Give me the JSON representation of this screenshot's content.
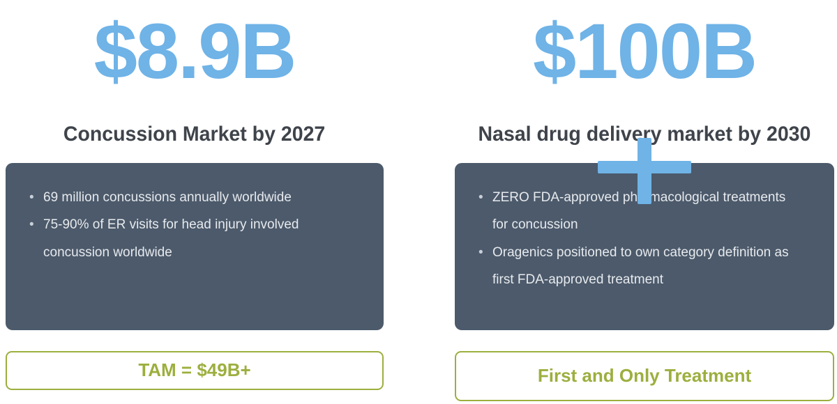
{
  "colors": {
    "accent_blue": "#6FB3E7",
    "panel_dark": "#4C5A6B",
    "heading_gray": "#3F444B",
    "accent_green": "#9CAF3E"
  },
  "left_column": {
    "value": "$8.9B",
    "heading": "Concussion Market by 2027",
    "bullets": [
      "69 million concussions annually worldwide",
      "75-90% of ER visits for head injury involved concussion worldwide"
    ],
    "badge_label": "TAM = $49B+"
  },
  "right_column": {
    "value": "$100B",
    "heading": "Nasal drug delivery market by 2030",
    "bullets": [
      "ZERO FDA-approved pharmacological treatments for concussion",
      "Oragenics positioned to own category definition as first FDA-approved treatment"
    ],
    "badge_label": "First and Only Treatment"
  }
}
